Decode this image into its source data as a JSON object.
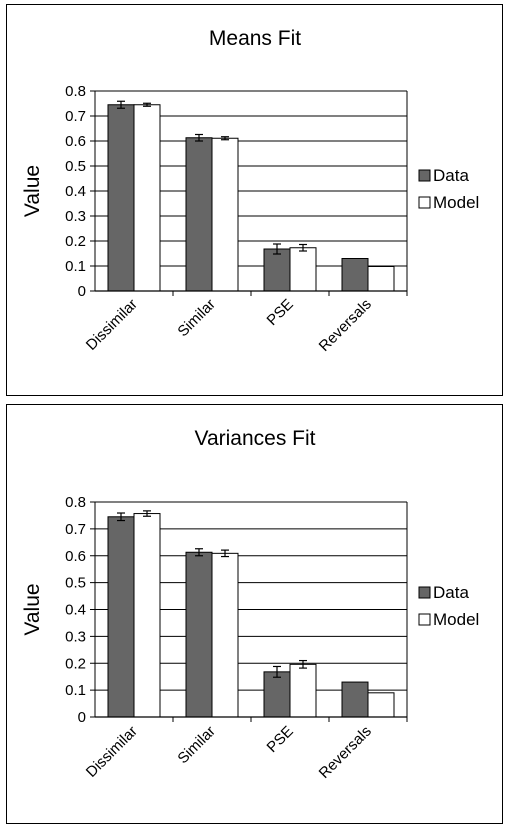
{
  "chart_data": [
    {
      "type": "bar",
      "title": "Means Fit",
      "xlabel": "",
      "ylabel": "Value",
      "ylim": [
        0,
        0.8
      ],
      "yticks": [
        "0",
        "0.1",
        "0.2",
        "0.3",
        "0.4",
        "0.5",
        "0.6",
        "0.7",
        "0.8"
      ],
      "grid": true,
      "legend_position": "right",
      "categories": [
        "Dissimilar",
        "Similar",
        "PSE",
        "Reversals"
      ],
      "series": [
        {
          "name": "Data",
          "color": "#666666",
          "values": [
            0.745,
            0.613,
            0.168,
            0.13
          ],
          "errors": [
            0.014,
            0.013,
            0.02,
            null
          ]
        },
        {
          "name": "Model",
          "color": "#ffffff",
          "values": [
            0.745,
            0.611,
            0.173,
            0.098
          ],
          "errors": [
            0.006,
            0.006,
            0.013,
            null
          ]
        }
      ]
    },
    {
      "type": "bar",
      "title": "Variances Fit",
      "xlabel": "",
      "ylabel": "Value",
      "ylim": [
        0,
        0.8
      ],
      "yticks": [
        "0",
        "0.1",
        "0.2",
        "0.3",
        "0.4",
        "0.5",
        "0.6",
        "0.7",
        "0.8"
      ],
      "grid": true,
      "legend_position": "right",
      "categories": [
        "Dissimilar",
        "Similar",
        "PSE",
        "Reversals"
      ],
      "series": [
        {
          "name": "Data",
          "color": "#666666",
          "values": [
            0.745,
            0.613,
            0.168,
            0.13
          ],
          "errors": [
            0.014,
            0.013,
            0.02,
            null
          ]
        },
        {
          "name": "Model",
          "color": "#ffffff",
          "values": [
            0.757,
            0.609,
            0.196,
            0.09
          ],
          "errors": [
            0.01,
            0.012,
            0.014,
            null
          ]
        }
      ]
    }
  ]
}
